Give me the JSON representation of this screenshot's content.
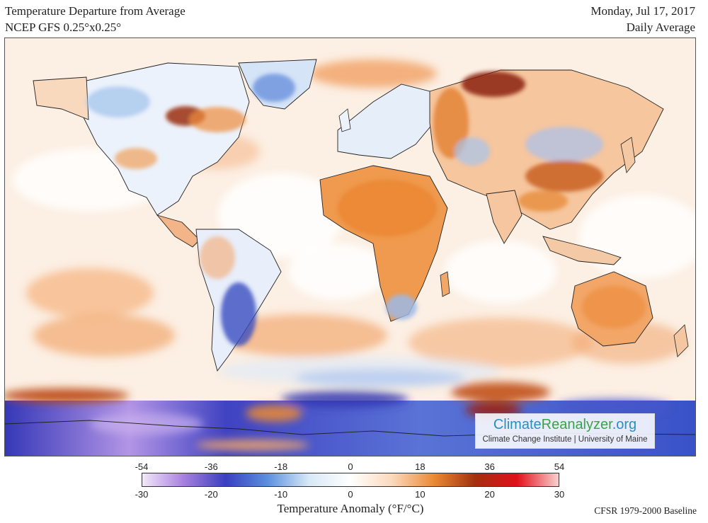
{
  "header": {
    "title": "Temperature Departure from Average",
    "model": "NCEP GFS 0.25°x0.25°",
    "date": "Monday, Jul 17, 2017",
    "period": "Daily Average"
  },
  "branding": {
    "name_part1": "Climate",
    "name_part2": "Reanalyzer",
    "name_part3": ".org",
    "subtitle": "Climate Change Institute | University of Maine"
  },
  "legend": {
    "fahrenheit_ticks": [
      "-54",
      "-36",
      "-18",
      "0",
      "18",
      "36",
      "54"
    ],
    "celsius_ticks": [
      "-30",
      "-20",
      "-10",
      "0",
      "10",
      "20",
      "30"
    ],
    "title": "Temperature Anomaly (°F/°C)",
    "baseline": "CFSR 1979-2000 Baseline",
    "colors": {
      "extreme_cold": "#f3e8f8",
      "very_cold": "#a77fe0",
      "cold": "#3a3fbf",
      "cool": "#5a8fe0",
      "slightly_cool": "#d8e8f6",
      "neutral": "#ffffff",
      "slightly_warm": "#fbd9bd",
      "warm": "#ec8a33",
      "hot": "#a3300c",
      "very_hot": "#e0101a",
      "extreme_hot": "#fbd0d0"
    }
  }
}
